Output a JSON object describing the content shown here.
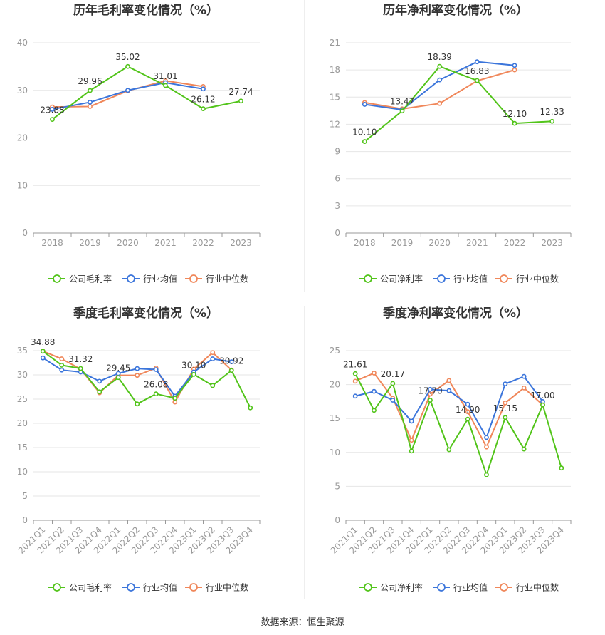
{
  "source_text": "数据来源：恒生聚源",
  "colors": {
    "company": "#52c41a",
    "industry_avg": "#3b75db",
    "industry_median": "#f0875a",
    "grid": "#e6e6e6",
    "axis": "#999999",
    "tick_text": "#999999",
    "title_text": "#333333",
    "label_text": "#333333"
  },
  "chart_data": [
    {
      "id": "annual-gross",
      "type": "line",
      "title": "历年毛利率变化情况（%）",
      "categories": [
        "2018",
        "2019",
        "2020",
        "2021",
        "2022",
        "2023"
      ],
      "yticks": [
        "0",
        "10",
        "20",
        "30",
        "40"
      ],
      "ylim": [
        0,
        40
      ],
      "grid": true,
      "legend_position": "bottom",
      "series": [
        {
          "key": "company",
          "name": "公司毛利率",
          "values": [
            23.88,
            29.96,
            35.02,
            31.01,
            26.12,
            27.74
          ],
          "labels": [
            "23.88",
            "29.96",
            "35.02",
            "31.01",
            "26.12",
            "27.74"
          ]
        },
        {
          "key": "industry_avg",
          "name": "行业均值",
          "values": [
            26.0,
            27.5,
            30.0,
            31.6,
            30.3,
            null
          ]
        },
        {
          "key": "industry_median",
          "name": "行业中位数",
          "values": [
            26.5,
            26.6,
            29.9,
            32.0,
            30.8,
            null
          ]
        }
      ]
    },
    {
      "id": "annual-net",
      "type": "line",
      "title": "历年净利率变化情况（%）",
      "categories": [
        "2018",
        "2019",
        "2020",
        "2021",
        "2022",
        "2023"
      ],
      "yticks": [
        "0",
        "3",
        "6",
        "9",
        "12",
        "15",
        "18",
        "21"
      ],
      "ylim": [
        0,
        21
      ],
      "grid": true,
      "legend_position": "bottom",
      "series": [
        {
          "key": "company",
          "name": "公司净利率",
          "values": [
            10.1,
            13.47,
            18.39,
            16.83,
            12.1,
            12.33
          ],
          "labels": [
            "10.10",
            "13.47",
            "18.39",
            "16.83",
            "12.10",
            "12.33"
          ]
        },
        {
          "key": "industry_avg",
          "name": "行业均值",
          "values": [
            14.2,
            13.6,
            16.9,
            18.9,
            18.5,
            null
          ]
        },
        {
          "key": "industry_median",
          "name": "行业中位数",
          "values": [
            14.4,
            13.7,
            14.3,
            16.8,
            18.0,
            null
          ]
        }
      ]
    },
    {
      "id": "quarterly-gross",
      "type": "line",
      "title": "季度毛利率变化情况（%）",
      "categories": [
        "2021Q1",
        "2021Q2",
        "2021Q3",
        "2021Q4",
        "2022Q1",
        "2022Q2",
        "2022Q3",
        "2022Q4",
        "2023Q1",
        "2023Q2",
        "2023Q3",
        "2023Q4"
      ],
      "yticks": [
        "0",
        "5",
        "10",
        "15",
        "20",
        "25",
        "30",
        "35"
      ],
      "ylim": [
        0,
        35
      ],
      "grid": true,
      "legend_position": "bottom",
      "series": [
        {
          "key": "company",
          "name": "公司毛利率",
          "values": [
            34.88,
            32.0,
            31.32,
            26.5,
            29.45,
            24.0,
            26.08,
            25.2,
            30.1,
            27.8,
            30.92,
            23.2
          ],
          "labels": [
            "34.88",
            "",
            "31.32",
            "",
            "29.45",
            "",
            "26.08",
            "",
            "30.10",
            "",
            "30.92",
            ""
          ]
        },
        {
          "key": "industry_avg",
          "name": "行业均值",
          "values": [
            33.5,
            31.0,
            30.6,
            28.7,
            30.3,
            31.3,
            31.1,
            25.6,
            30.6,
            33.3,
            32.7,
            null
          ]
        },
        {
          "key": "industry_median",
          "name": "行业中位数",
          "values": [
            34.9,
            33.3,
            31.2,
            26.3,
            29.9,
            29.9,
            31.4,
            24.4,
            31.2,
            34.6,
            31.0,
            null
          ]
        }
      ]
    },
    {
      "id": "quarterly-net",
      "type": "line",
      "title": "季度净利率变化情况（%）",
      "categories": [
        "2021Q1",
        "2021Q2",
        "2021Q3",
        "2021Q4",
        "2022Q1",
        "2022Q2",
        "2022Q3",
        "2022Q4",
        "2023Q1",
        "2023Q2",
        "2023Q3",
        "2023Q4"
      ],
      "yticks": [
        "0",
        "5",
        "10",
        "15",
        "20",
        "25"
      ],
      "ylim": [
        0,
        25
      ],
      "grid": true,
      "legend_position": "bottom",
      "series": [
        {
          "key": "company",
          "name": "公司净利率",
          "values": [
            21.61,
            16.2,
            20.17,
            10.2,
            17.7,
            10.4,
            14.9,
            6.7,
            15.15,
            10.5,
            17.0,
            7.7
          ],
          "labels": [
            "21.61",
            "",
            "20.17",
            "",
            "17.70",
            "",
            "14.90",
            "",
            "15.15",
            "",
            "17.00",
            ""
          ]
        },
        {
          "key": "industry_avg",
          "name": "行业均值",
          "values": [
            18.3,
            19.0,
            17.7,
            14.6,
            19.3,
            19.1,
            17.1,
            12.2,
            20.1,
            21.2,
            17.5,
            null
          ]
        },
        {
          "key": "industry_median",
          "name": "行业中位数",
          "values": [
            20.5,
            21.7,
            18.0,
            11.8,
            18.6,
            20.6,
            16.0,
            10.8,
            17.3,
            19.5,
            17.0,
            null
          ]
        }
      ]
    }
  ]
}
